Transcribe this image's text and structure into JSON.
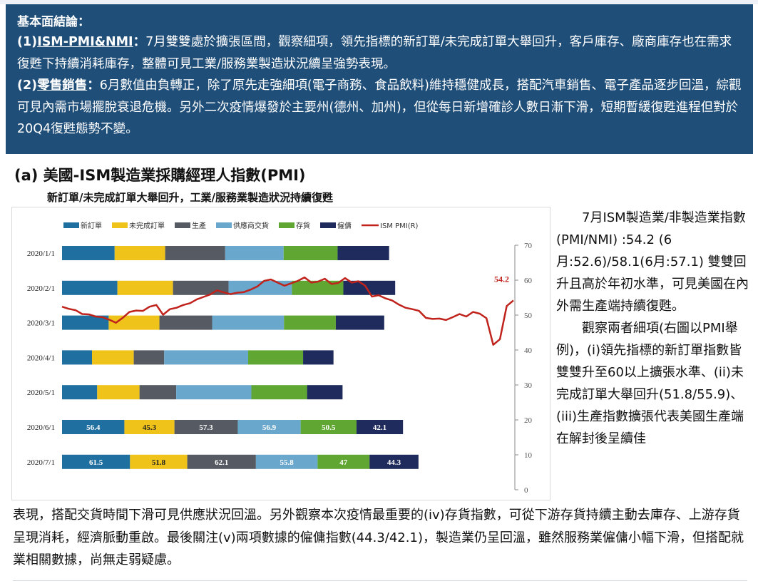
{
  "summary": {
    "title": "基本面結論：",
    "item1_prefix": "(1)",
    "item1_keyword": "ISM-PMI&NMI",
    "item1_colon": "：",
    "item1_text": "7月雙雙處於擴張區間，觀察細項，領先指標的新訂單/未完成訂單大舉回升，客戶庫存、廠商庫存也在需求復甦下持續消耗庫存，整體可見工業/服務業製造狀況續呈強勢表現。",
    "item2_prefix": "(2)",
    "item2_keyword": "零售銷售",
    "item2_colon": "：",
    "item2_text": "6月數值由負轉正，除了原先走強細項(電子商務、食品飲料)維持穩健成長，搭配汽車銷售、電子產品逐步回溫，綜觀可見內需市場擺脫衰退危機。另外二次疫情爆發於主要州(德州、加州)，但從每日新增確診人數日漸下滑，短期暫緩復甦進程但對於20Q4復甦態勢不變。"
  },
  "section_title": "(a) 美國-ISM製造業採購經理人指數(PMI)",
  "chart_subtitle": "新訂單/未完成訂單大舉回升，工業/服務業製造狀況持續復甦",
  "side_text": {
    "p1": "7月ISM製造業/非製造業指數(PMI/NMI) :54.2 (6月:52.6)/58.1(6月:57.1) 雙雙回升且高於年初水準，可見美國在內外需生產端持續復甦。",
    "p2": "觀察兩者細項(右圖以PMI舉例)，(i)領先指標的新訂單指數皆雙雙升至60以上擴張水準、(ii)未完成訂單大舉回升(51.8/55.9)、(iii)生產指數擴張代表美國生產端在解封後呈續佳"
  },
  "bottom_text": "表現，搭配交貨時間下滑可見供應狀況回溫。另外觀察本次疫情最重要的(iv)存貨指數，可從下游存貨持續主動去庫存、上游存貨呈現消耗，經濟脈動重啟。最後關注(v)兩項數據的僱傭指數(44.3/42.1)，製造業仍呈回溫，雖然服務業僱傭小幅下滑，但搭配就業相關數據，尚無走弱疑慮。",
  "chart_data": {
    "type": "bar",
    "stacked": true,
    "orientation": "horizontal",
    "categories": [
      "2020/1/1",
      "2020/2/1",
      "2020/3/1",
      "2020/4/1",
      "2020/5/1",
      "2020/6/1",
      "2020/7/1"
    ],
    "series": [
      {
        "name": "新訂單",
        "color": "#1f6fa0",
        "values": [
          47.6,
          50.1,
          42.2,
          27.1,
          31.8,
          56.4,
          61.5
        ]
      },
      {
        "name": "未完成訂單",
        "color": "#f0c31a",
        "values": [
          45.7,
          50.3,
          45.9,
          37.8,
          38.3,
          45.3,
          51.8
        ]
      },
      {
        "name": "生產",
        "color": "#555a63",
        "values": [
          54.3,
          50.3,
          47.7,
          27.5,
          33.2,
          57.3,
          62.1
        ]
      },
      {
        "name": "供應商交貨",
        "color": "#6aa7cc",
        "values": [
          52.9,
          57.3,
          65.0,
          76.0,
          68.0,
          56.9,
          55.8
        ]
      },
      {
        "name": "存貨",
        "color": "#5fa732",
        "values": [
          48.8,
          46.5,
          46.9,
          49.7,
          50.4,
          50.5,
          47.0
        ]
      },
      {
        "name": "僱傭",
        "color": "#1e2b5c",
        "values": [
          46.6,
          46.9,
          43.8,
          27.5,
          32.1,
          42.1,
          44.3
        ]
      }
    ],
    "labeled_rows": [
      "2020/6/1",
      "2020/7/1"
    ],
    "line": {
      "name": "ISM PMI(R)",
      "color": "#c0221c",
      "axis": "right",
      "ylim": [
        0,
        70
      ],
      "yticks": [
        0,
        10,
        20,
        30,
        40,
        50,
        60,
        70
      ],
      "values": [
        52.4,
        51.8,
        51.4,
        50.3,
        50.2,
        49.6,
        49.4,
        48.7,
        47.8,
        49.2,
        50.9,
        51.3,
        51.2,
        52.4,
        52.9,
        50.1,
        51.7,
        52.1,
        52.9,
        53.4,
        54.5,
        55.2,
        55.9,
        57.1,
        56.5,
        56.0,
        56.4,
        56.6,
        57.3,
        58.2,
        59.8,
        60.2,
        59.3,
        58.4,
        59.1,
        59.8,
        60.8,
        59.3,
        59.6,
        60.4,
        58.9,
        59.2,
        60.6,
        59.3,
        59.7,
        58.4,
        55.3,
        55.7,
        54.8,
        54.2,
        53.0,
        52.1,
        51.7,
        51.2,
        49.2,
        48.9,
        49.0,
        48.6,
        49.4,
        50.3,
        49.6,
        50.9,
        50.4,
        49.1,
        41.5,
        43.1,
        52.6,
        54.2
      ],
      "end_label": "54.2"
    }
  }
}
